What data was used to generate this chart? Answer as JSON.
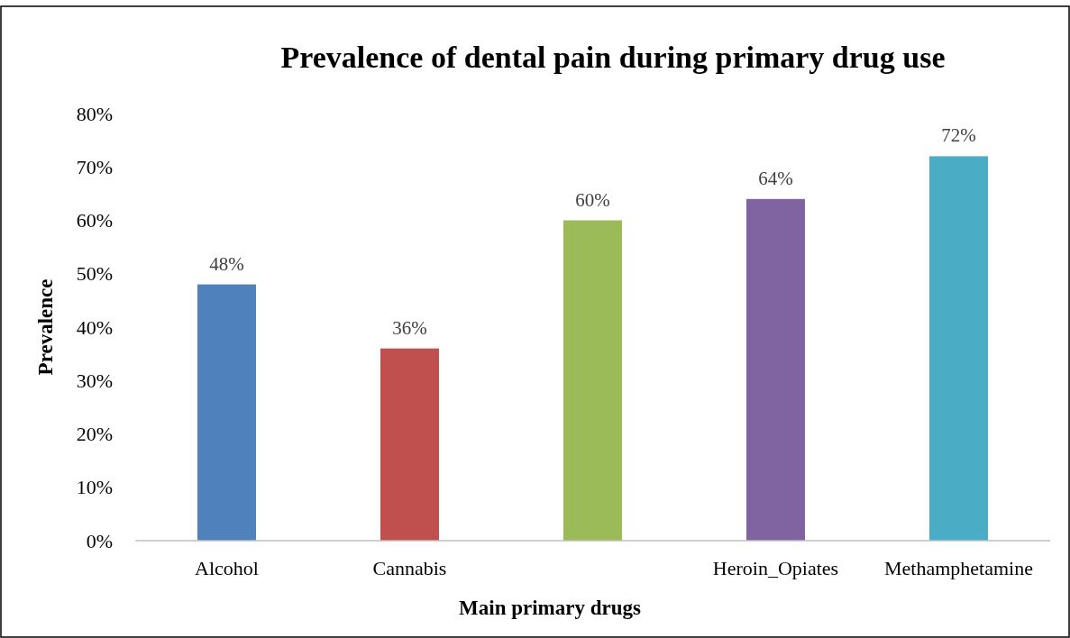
{
  "chart_data": {
    "type": "bar",
    "title": "Prevalence of dental pain during primary drug use",
    "xlabel": "Main primary drugs",
    "ylabel": "Prevalence",
    "categories": [
      "Alcohol",
      "Cannabis",
      null,
      "Heroin_Opiates",
      "Methamphetamine"
    ],
    "values": [
      48,
      36,
      60,
      64,
      72
    ],
    "colors": [
      "#4f81bd",
      "#c0504d",
      "#9bbb59",
      "#8064a2",
      "#4bacc6"
    ],
    "value_labels": [
      "48%",
      "36%",
      "60%",
      "64%",
      "72%"
    ],
    "ylim": [
      0,
      80
    ],
    "yticks": [
      {
        "value": 0,
        "label": "0%"
      },
      {
        "value": 10,
        "label": "10%"
      },
      {
        "value": 20,
        "label": "20%"
      },
      {
        "value": 30,
        "label": "30%"
      },
      {
        "value": 40,
        "label": "40%"
      },
      {
        "value": 50,
        "label": "50%"
      },
      {
        "value": 60,
        "label": "60%"
      },
      {
        "value": 70,
        "label": "70%"
      },
      {
        "value": 80,
        "label": "80%"
      }
    ],
    "grid": false
  }
}
